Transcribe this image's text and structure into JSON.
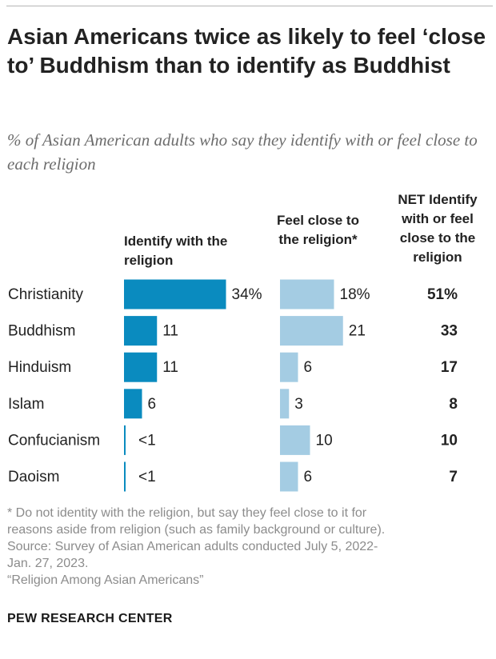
{
  "header": {
    "title": "Asian Americans twice as likely to feel ‘close to’ Buddhism than to identify as Buddhist",
    "subtitle": "% of Asian American adults who say they identify with or feel close to each religion"
  },
  "columns": {
    "identify": "Identify with the religion",
    "close": "Feel close to the religion*",
    "net": "NET Identify with or feel close to the religion"
  },
  "colors": {
    "identify": "#0a8bbf",
    "close": "#a4cce3",
    "text": "#222222",
    "muted": "#8c8c8c"
  },
  "chart_data": {
    "type": "bar",
    "categories": [
      "Christianity",
      "Buddhism",
      "Hinduism",
      "Islam",
      "Confucianism",
      "Daoism"
    ],
    "series": [
      {
        "name": "Identify with the religion",
        "values": [
          34,
          11,
          11,
          6,
          0.5,
          0.5
        ],
        "labels": [
          "34%",
          "11",
          "11",
          "6",
          "<1",
          "<1"
        ]
      },
      {
        "name": "Feel close to the religion*",
        "values": [
          18,
          21,
          6,
          3,
          10,
          6
        ],
        "labels": [
          "18%",
          "21",
          "6",
          "3",
          "10",
          "6"
        ]
      },
      {
        "name": "NET Identify with or feel close to the religion",
        "values": [
          51,
          33,
          17,
          8,
          10,
          7
        ],
        "labels": [
          "51%",
          "33",
          "17",
          "8",
          "10",
          "7"
        ]
      }
    ]
  },
  "footnotes": {
    "note_line1": "* Do not identity with the religion, but say they feel close to it for",
    "note_line2": "reasons aside from religion (such as family background or culture).",
    "source_line1": "Source: Survey of Asian American adults conducted July 5, 2022-",
    "source_line2": "Jan. 27, 2023.",
    "report": "“Religion Among Asian Americans”"
  },
  "brand": "PEW RESEARCH CENTER"
}
